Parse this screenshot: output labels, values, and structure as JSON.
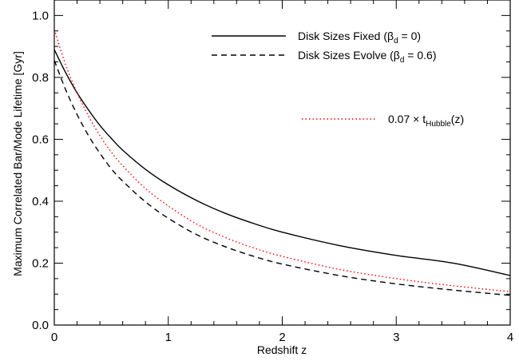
{
  "chart_data": {
    "type": "line",
    "title": "",
    "xlabel": "Redshift z",
    "ylabel": "Maximum Correlated Bar/Mode Lifetime  [Gyr]",
    "xlim": [
      0,
      4
    ],
    "ylim": [
      0,
      1.05
    ],
    "x_ticks": [
      0,
      1,
      2,
      3,
      4
    ],
    "x_tick_labels": [
      "0",
      "1",
      "2",
      "3",
      "4"
    ],
    "y_ticks": [
      0.0,
      0.2,
      0.4,
      0.6,
      0.8,
      1.0
    ],
    "y_tick_labels": [
      "0.0",
      "0.2",
      "0.4",
      "0.6",
      "0.8",
      "1.0"
    ],
    "grid": false,
    "legend_position": "top-right",
    "x": [
      0,
      0.1,
      0.2,
      0.3,
      0.4,
      0.5,
      0.6,
      0.8,
      1.0,
      1.25,
      1.5,
      1.75,
      2.0,
      2.5,
      3.0,
      3.5,
      4.0
    ],
    "series": [
      {
        "name_main": "Disk Sizes Fixed (β",
        "name_sub": "d",
        "name_tail": " = 0)",
        "style": "solid",
        "color": "#000000",
        "values": [
          0.89,
          0.815,
          0.75,
          0.695,
          0.645,
          0.603,
          0.565,
          0.503,
          0.453,
          0.402,
          0.361,
          0.328,
          0.3,
          0.257,
          0.225,
          0.2,
          0.16
        ]
      },
      {
        "name_main": "Disk Sizes Evolve (β",
        "name_sub": "d",
        "name_tail": " = 0.6)",
        "style": "dashed",
        "color": "#000000",
        "values": [
          0.855,
          0.76,
          0.68,
          0.612,
          0.555,
          0.505,
          0.465,
          0.398,
          0.345,
          0.292,
          0.253,
          0.222,
          0.197,
          0.16,
          0.133,
          0.113,
          0.096
        ]
      },
      {
        "name_main": "0.07 × t",
        "name_sub": "Hubble",
        "name_tail": "(z)",
        "style": "dotted",
        "color": "#ff0000",
        "values": [
          0.955,
          0.84,
          0.75,
          0.675,
          0.612,
          0.559,
          0.515,
          0.441,
          0.385,
          0.326,
          0.283,
          0.249,
          0.222,
          0.18,
          0.15,
          0.127,
          0.108
        ]
      }
    ]
  }
}
